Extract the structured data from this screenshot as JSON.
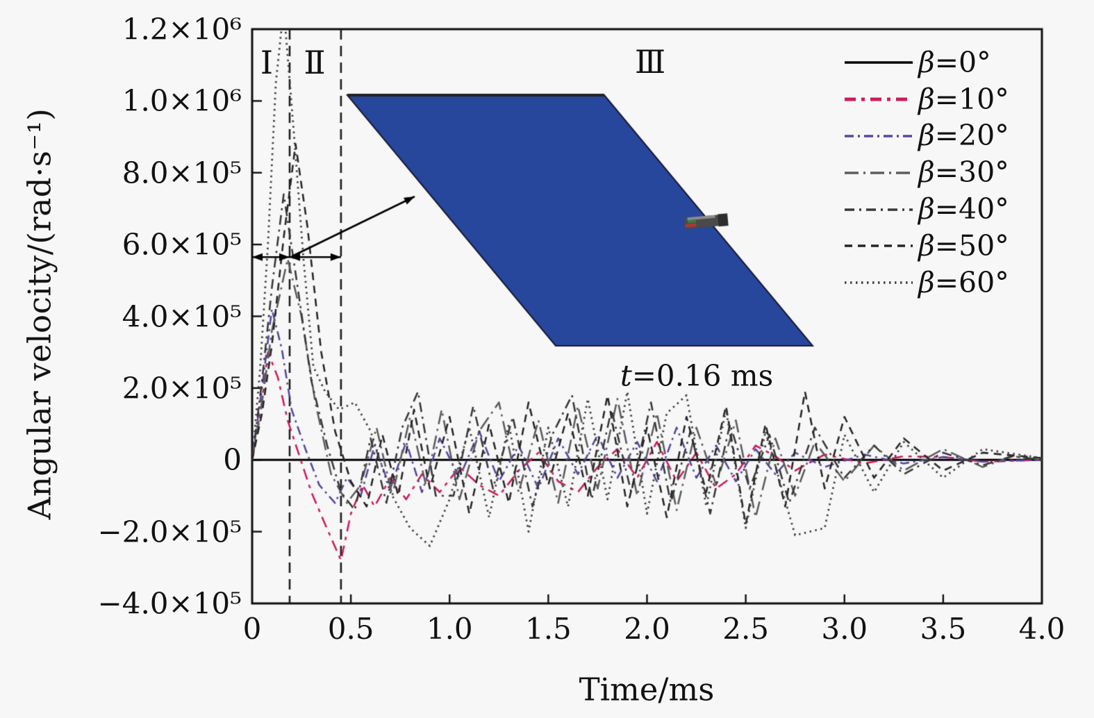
{
  "figure": {
    "background": "#f7f7f7",
    "y_axis_title": "Angular velocity/(rad·s⁻¹)",
    "x_axis_title": "Time/ms"
  },
  "chart_data": {
    "type": "line",
    "title": "",
    "xlabel": "Time/ms",
    "ylabel": "Angular velocity/(rad·s⁻¹)",
    "xlim": [
      0,
      4.0
    ],
    "ylim": [
      -400000,
      1200000
    ],
    "grid": false,
    "legend_position": "top-right",
    "x_ticks": [
      0,
      0.5,
      1.0,
      1.5,
      2.0,
      2.5,
      3.0,
      3.5,
      4.0
    ],
    "x_tick_labels": [
      "0",
      "0.5",
      "1.0",
      "1.5",
      "2.0",
      "2.5",
      "3.0",
      "3.5",
      "4.0"
    ],
    "y_ticks": [
      -400000,
      -200000,
      0,
      200000,
      400000,
      600000,
      800000,
      1000000,
      1200000
    ],
    "y_tick_labels": [
      "−4.0×10⁵",
      "−2.0×10⁵",
      "0",
      "2.0×10⁵",
      "4.0×10⁵",
      "6.0×10⁵",
      "8.0×10⁵",
      "1.0×10⁶",
      "1.2×10⁶"
    ],
    "regions": [
      {
        "label": "Ⅰ",
        "t_center": 0.07
      },
      {
        "label": "Ⅱ",
        "t_center": 0.315
      },
      {
        "label": "Ⅲ",
        "t_center": 2.02
      }
    ],
    "region_boundaries_ms": [
      0.19,
      0.45
    ],
    "stage_spans_ms": [
      [
        0,
        0.19
      ],
      [
        0.19,
        0.45
      ]
    ],
    "stage_arrow_level": 565000,
    "value_scale": 100000,
    "series": [
      {
        "name": "β=0°",
        "color": "#000000",
        "dash": [],
        "width": 2.8,
        "points": [
          [
            0,
            0
          ],
          [
            4,
            0
          ]
        ]
      },
      {
        "name": "β=10°",
        "color": "#cf1b5c",
        "dash": [
          16,
          8,
          5,
          8
        ],
        "width": 2.6,
        "points": [
          [
            0,
            0
          ],
          [
            0.04,
            1.2
          ],
          [
            0.08,
            3.0
          ],
          [
            0.13,
            2.3
          ],
          [
            0.18,
            1.1
          ],
          [
            0.24,
            0.1
          ],
          [
            0.3,
            -0.9
          ],
          [
            0.37,
            -1.8
          ],
          [
            0.45,
            -2.8
          ],
          [
            0.5,
            -1.5
          ],
          [
            0.56,
            -0.7
          ],
          [
            0.62,
            -1.3
          ],
          [
            0.7,
            -0.5
          ],
          [
            0.78,
            -1.1
          ],
          [
            0.86,
            -0.4
          ],
          [
            0.95,
            -0.9
          ],
          [
            1.05,
            -0.2
          ],
          [
            1.15,
            -0.7
          ],
          [
            1.25,
            -1.0
          ],
          [
            1.35,
            -0.3
          ],
          [
            1.45,
            0.2
          ],
          [
            1.55,
            -0.6
          ],
          [
            1.65,
            -0.9
          ],
          [
            1.75,
            -0.2
          ],
          [
            1.85,
            0.3
          ],
          [
            1.95,
            -0.5
          ],
          [
            2.05,
            0.5
          ],
          [
            2.15,
            -0.6
          ],
          [
            2.25,
            0.2
          ],
          [
            2.35,
            -0.8
          ],
          [
            2.45,
            -0.4
          ],
          [
            2.55,
            0.4
          ],
          [
            2.65,
            0.1
          ],
          [
            2.75,
            -0.3
          ],
          [
            2.9,
            0.15
          ],
          [
            3.1,
            -0.1
          ],
          [
            3.3,
            0.1
          ],
          [
            3.5,
            0.08
          ],
          [
            3.7,
            -0.05
          ],
          [
            4,
            0
          ]
        ]
      },
      {
        "name": "β=20°",
        "color": "#54489f",
        "dash": [
          13,
          6,
          3,
          6
        ],
        "width": 2.6,
        "points": [
          [
            0,
            0
          ],
          [
            0.05,
            2.0
          ],
          [
            0.1,
            4.2
          ],
          [
            0.15,
            3.1
          ],
          [
            0.2,
            1.4
          ],
          [
            0.27,
            0.3
          ],
          [
            0.34,
            -0.7
          ],
          [
            0.42,
            -1.2
          ],
          [
            0.48,
            -0.5
          ],
          [
            0.55,
            -1.0
          ],
          [
            0.62,
            0.4
          ],
          [
            0.7,
            -0.8
          ],
          [
            0.78,
            0.5
          ],
          [
            0.86,
            -0.9
          ],
          [
            0.95,
            0.6
          ],
          [
            1.05,
            -0.5
          ],
          [
            1.15,
            0.8
          ],
          [
            1.25,
            -0.6
          ],
          [
            1.35,
            0.4
          ],
          [
            1.45,
            -0.8
          ],
          [
            1.55,
            0.6
          ],
          [
            1.65,
            -0.4
          ],
          [
            1.75,
            0.7
          ],
          [
            1.85,
            -0.5
          ],
          [
            1.95,
            0.5
          ],
          [
            2.05,
            -0.6
          ],
          [
            2.15,
            0.9
          ],
          [
            2.25,
            -0.5
          ],
          [
            2.35,
            0.4
          ],
          [
            2.45,
            -0.6
          ],
          [
            2.55,
            0.3
          ],
          [
            2.65,
            -0.4
          ],
          [
            2.75,
            0.2
          ],
          [
            2.9,
            -0.2
          ],
          [
            3.1,
            0.15
          ],
          [
            3.3,
            -0.1
          ],
          [
            3.5,
            0.08
          ],
          [
            3.7,
            -0.05
          ],
          [
            4,
            0
          ]
        ]
      },
      {
        "name": "β=30°",
        "color": "#5d5d5d",
        "dash": [
          20,
          7,
          3,
          7
        ],
        "width": 2.6,
        "points": [
          [
            0,
            0
          ],
          [
            0.05,
            1.6
          ],
          [
            0.1,
            3.6
          ],
          [
            0.18,
            5.6
          ],
          [
            0.25,
            4.0
          ],
          [
            0.32,
            1.6
          ],
          [
            0.4,
            -0.4
          ],
          [
            0.48,
            -1.2
          ],
          [
            0.55,
            -0.7
          ],
          [
            0.63,
            0.9
          ],
          [
            0.71,
            -1.0
          ],
          [
            0.8,
            1.2
          ],
          [
            0.88,
            -0.7
          ],
          [
            0.96,
            1.4
          ],
          [
            1.05,
            -1.1
          ],
          [
            1.15,
            0.8
          ],
          [
            1.25,
            1.6
          ],
          [
            1.35,
            -0.9
          ],
          [
            1.45,
            1.1
          ],
          [
            1.55,
            -1.2
          ],
          [
            1.65,
            1.5
          ],
          [
            1.75,
            -0.8
          ],
          [
            1.85,
            1.7
          ],
          [
            1.95,
            -1.0
          ],
          [
            2.05,
            1.3
          ],
          [
            2.15,
            -1.4
          ],
          [
            2.25,
            0.9
          ],
          [
            2.35,
            -0.7
          ],
          [
            2.45,
            1.1
          ],
          [
            2.55,
            -1.6
          ],
          [
            2.65,
            0.6
          ],
          [
            2.75,
            -1.0
          ],
          [
            2.85,
            0.5
          ],
          [
            3.0,
            -0.6
          ],
          [
            3.15,
            0.4
          ],
          [
            3.3,
            -0.3
          ],
          [
            3.5,
            0.3
          ],
          [
            3.7,
            -0.2
          ],
          [
            3.85,
            0.1
          ],
          [
            4,
            0
          ]
        ]
      },
      {
        "name": "β=40°",
        "color": "#383838",
        "dash": [
          14,
          7,
          3,
          7
        ],
        "width": 2.6,
        "points": [
          [
            0,
            0
          ],
          [
            0.05,
            2.2
          ],
          [
            0.1,
            4.8
          ],
          [
            0.16,
            7.4
          ],
          [
            0.22,
            5.2
          ],
          [
            0.3,
            2.2
          ],
          [
            0.38,
            0.4
          ],
          [
            0.45,
            -0.9
          ],
          [
            0.52,
            -1.4
          ],
          [
            0.6,
            0.6
          ],
          [
            0.68,
            -1.2
          ],
          [
            0.76,
            0.9
          ],
          [
            0.84,
            1.9
          ],
          [
            0.93,
            -1.0
          ],
          [
            1.02,
            -1.0
          ],
          [
            1.12,
            1.5
          ],
          [
            1.22,
            -0.8
          ],
          [
            1.32,
            1.2
          ],
          [
            1.42,
            -1.3
          ],
          [
            1.52,
            0.7
          ],
          [
            1.62,
            1.8
          ],
          [
            1.72,
            -1.1
          ],
          [
            1.82,
            1.4
          ],
          [
            1.92,
            -0.9
          ],
          [
            2.02,
            1.6
          ],
          [
            2.12,
            -1.2
          ],
          [
            2.22,
            0.8
          ],
          [
            2.32,
            -1.5
          ],
          [
            2.42,
            1.0
          ],
          [
            2.52,
            -0.8
          ],
          [
            2.62,
            0.7
          ],
          [
            2.72,
            -1.2
          ],
          [
            2.85,
            0.9
          ],
          [
            3.0,
            -0.5
          ],
          [
            3.15,
            0.4
          ],
          [
            3.3,
            -0.4
          ],
          [
            3.5,
            0.2
          ],
          [
            3.7,
            -0.15
          ],
          [
            3.85,
            0.1
          ],
          [
            4,
            0
          ]
        ]
      },
      {
        "name": "β=50°",
        "color": "#262626",
        "dash": [
          11,
          8
        ],
        "width": 2.6,
        "points": [
          [
            0,
            0
          ],
          [
            0.05,
            1.3
          ],
          [
            0.1,
            3.2
          ],
          [
            0.16,
            6.2
          ],
          [
            0.22,
            8.8
          ],
          [
            0.28,
            6.5
          ],
          [
            0.35,
            3.0
          ],
          [
            0.42,
            0.8
          ],
          [
            0.5,
            -0.6
          ],
          [
            0.58,
            -1.3
          ],
          [
            0.66,
            0.7
          ],
          [
            0.74,
            -1.0
          ],
          [
            0.82,
            1.4
          ],
          [
            0.9,
            -0.8
          ],
          [
            1.0,
            1.2
          ],
          [
            1.1,
            -1.5
          ],
          [
            1.2,
            1.0
          ],
          [
            1.3,
            -1.2
          ],
          [
            1.4,
            1.6
          ],
          [
            1.5,
            -0.7
          ],
          [
            1.6,
            1.3
          ],
          [
            1.7,
            -1.0
          ],
          [
            1.8,
            1.8
          ],
          [
            1.9,
            -1.3
          ],
          [
            2.0,
            0.9
          ],
          [
            2.1,
            -1.6
          ],
          [
            2.2,
            1.2
          ],
          [
            2.3,
            -0.9
          ],
          [
            2.4,
            1.5
          ],
          [
            2.5,
            -1.8
          ],
          [
            2.6,
            1.0
          ],
          [
            2.7,
            -1.3
          ],
          [
            2.8,
            1.9
          ],
          [
            2.9,
            -0.8
          ],
          [
            3.0,
            1.2
          ],
          [
            3.15,
            -0.5
          ],
          [
            3.3,
            0.6
          ],
          [
            3.5,
            -0.3
          ],
          [
            3.7,
            0.2
          ],
          [
            4,
            0.05
          ]
        ]
      },
      {
        "name": "β=60°",
        "color": "#3f3f3f",
        "dash": [
          2.5,
          5.5
        ],
        "width": 2.8,
        "points": [
          [
            0,
            0
          ],
          [
            0.04,
            2.5
          ],
          [
            0.08,
            6.0
          ],
          [
            0.12,
            10.5
          ],
          [
            0.16,
            12.6
          ],
          [
            0.21,
            9.2
          ],
          [
            0.26,
            5.6
          ],
          [
            0.31,
            2.6
          ],
          [
            0.37,
            1.9
          ],
          [
            0.44,
            1.4
          ],
          [
            0.52,
            1.6
          ],
          [
            0.6,
            0.8
          ],
          [
            0.7,
            -0.9
          ],
          [
            0.8,
            -1.9
          ],
          [
            0.9,
            -2.4
          ],
          [
            1.0,
            -1.1
          ],
          [
            1.1,
            0.9
          ],
          [
            1.2,
            -1.6
          ],
          [
            1.3,
            1.0
          ],
          [
            1.4,
            -2.0
          ],
          [
            1.5,
            0.9
          ],
          [
            1.6,
            -1.3
          ],
          [
            1.7,
            1.7
          ],
          [
            1.8,
            -1.1
          ],
          [
            1.9,
            1.9
          ],
          [
            2.0,
            -1.5
          ],
          [
            2.1,
            1.3
          ],
          [
            2.2,
            1.8
          ],
          [
            2.3,
            -1.3
          ],
          [
            2.4,
            1.4
          ],
          [
            2.5,
            -1.9
          ],
          [
            2.6,
            0.8
          ],
          [
            2.75,
            -2.1
          ],
          [
            2.9,
            -1.9
          ],
          [
            3.0,
            0.7
          ],
          [
            3.15,
            -0.9
          ],
          [
            3.3,
            0.5
          ],
          [
            3.5,
            -0.5
          ],
          [
            3.7,
            0.3
          ],
          [
            4,
            0.05
          ]
        ]
      }
    ]
  },
  "inset": {
    "caption": "t=0.16 ms",
    "plate_color": "#27479d",
    "plate_edge_color": "#171732",
    "plate_top_edge_color": "#222222",
    "projectile_body_color": "#4a4a4a",
    "projectile_cap_color": "#2d2d2d",
    "projectile_tip_color": "#a83a32",
    "projectile_fleck_color": "#3f7a4a"
  }
}
